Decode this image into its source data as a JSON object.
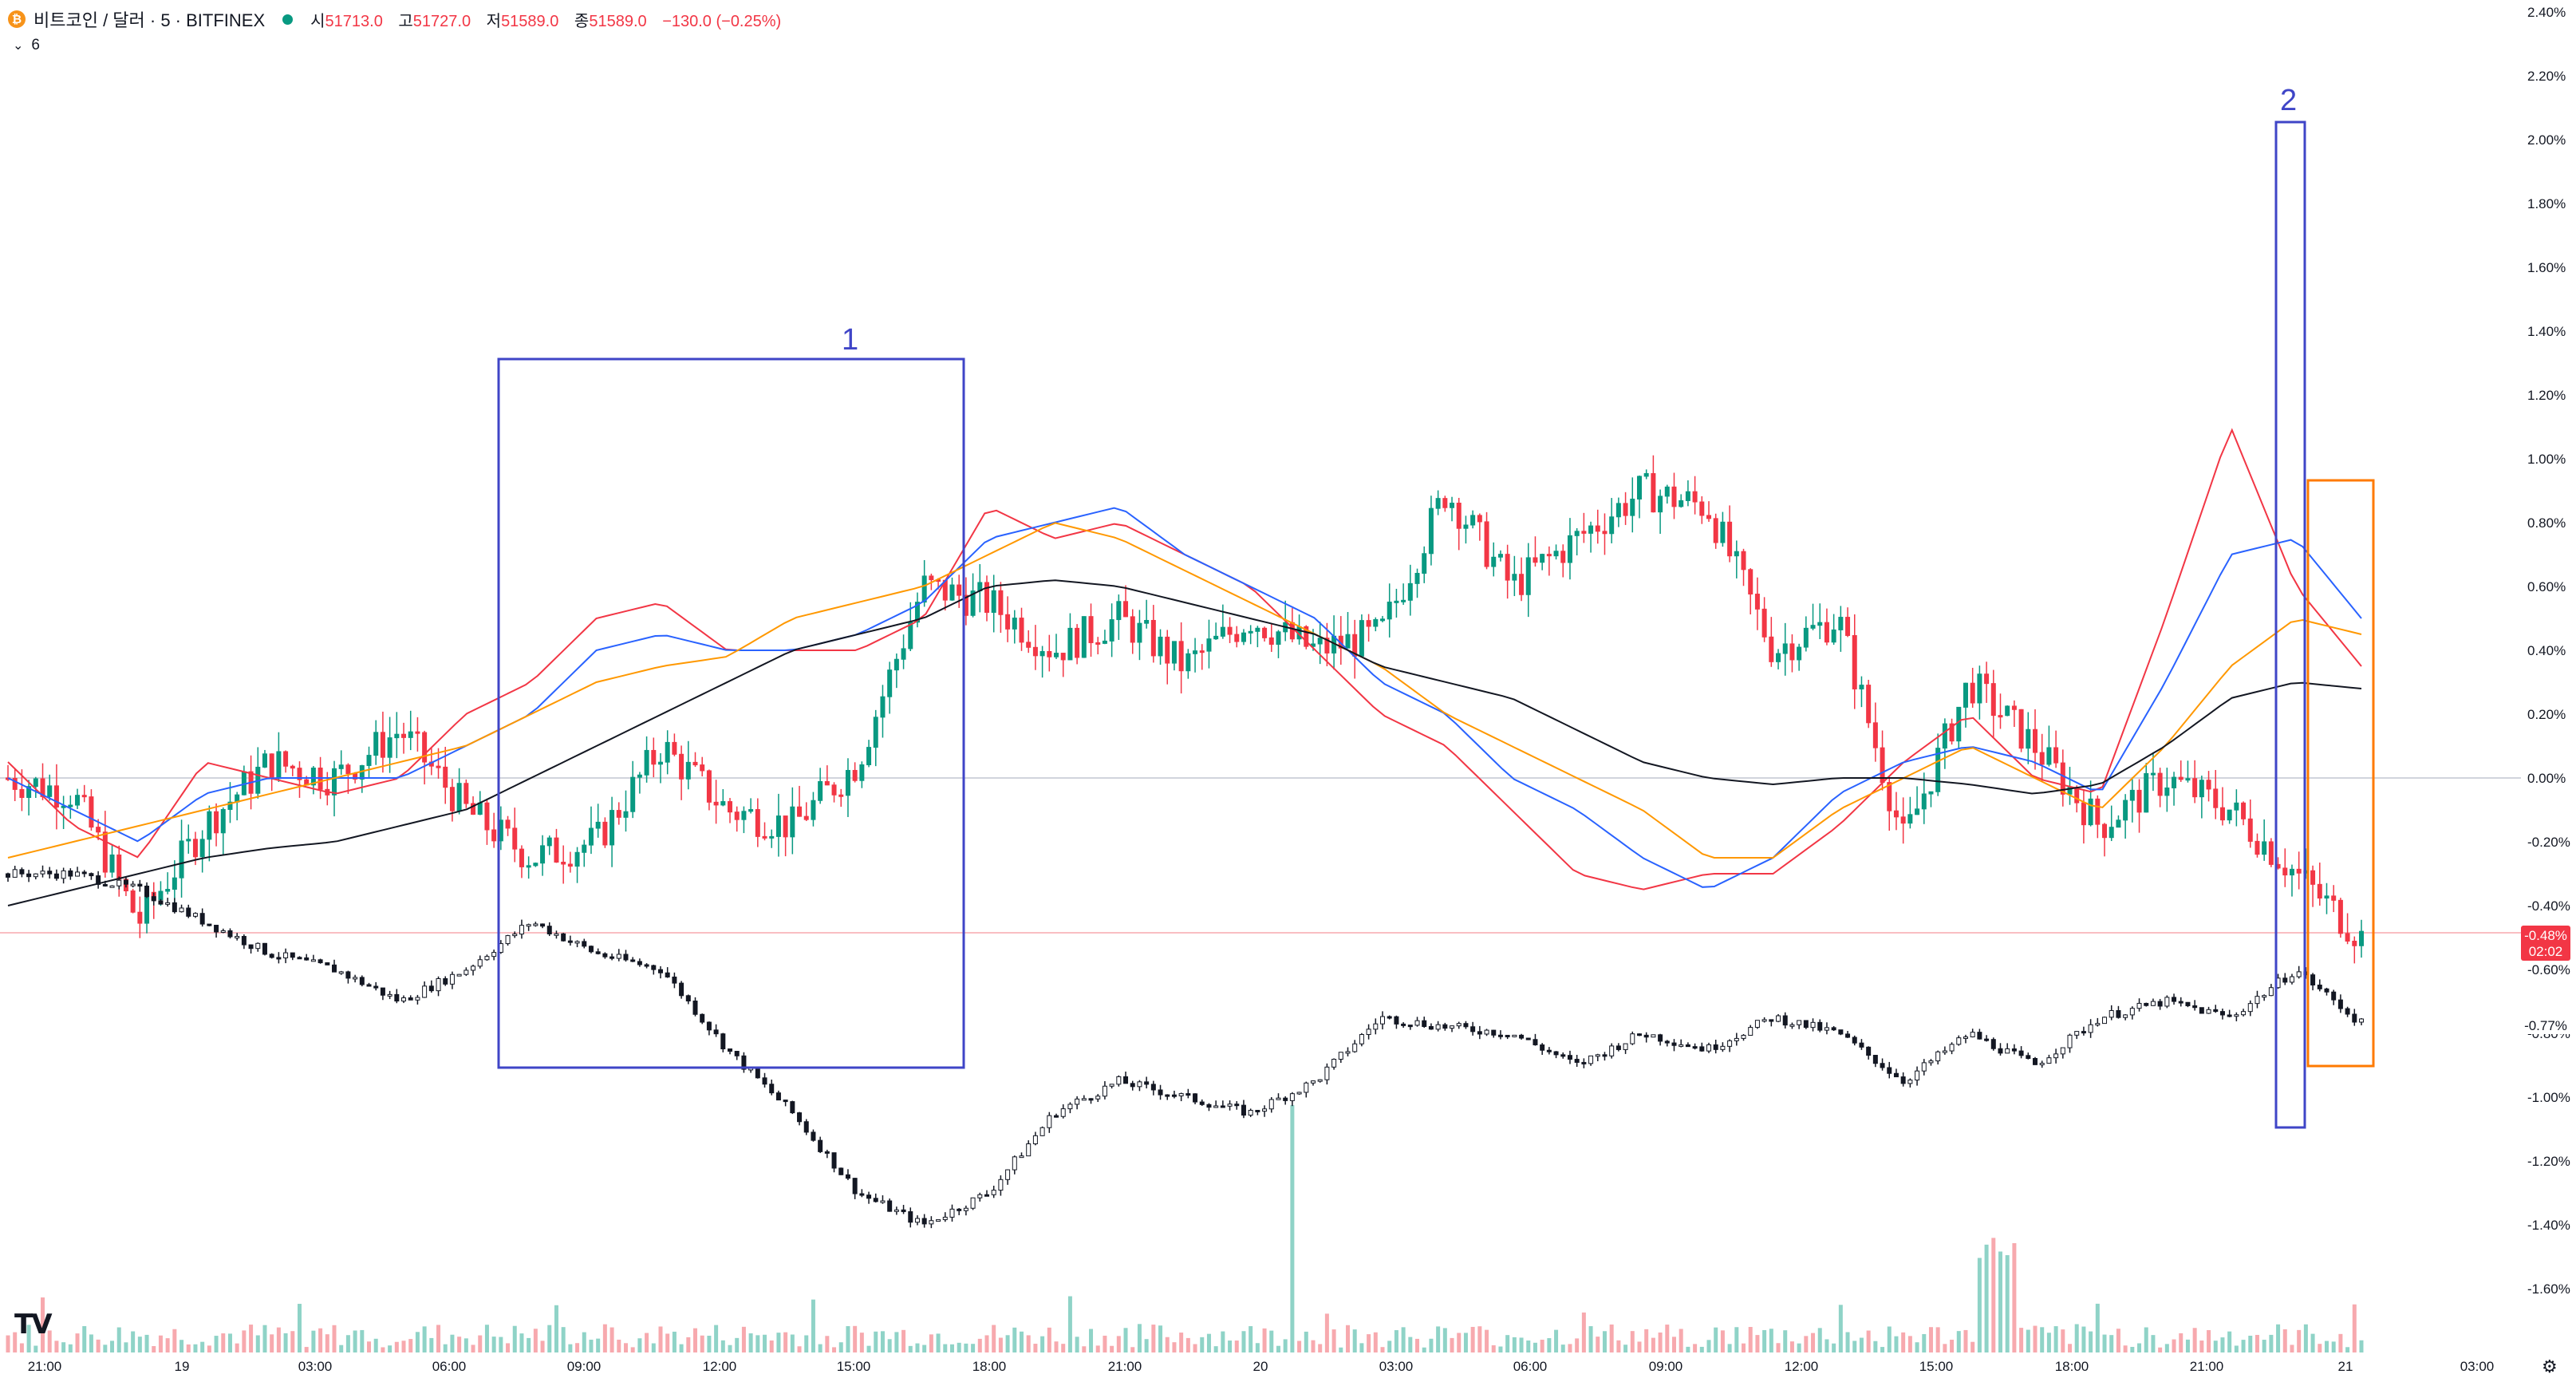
{
  "header": {
    "coin_icon": "bitcoin-icon",
    "symbol": "비트코인 / 달러 · 5 · BITFINEX",
    "status_color": "#089981",
    "open_label": "시",
    "open": "51713.0",
    "high_label": "고",
    "high": "51727.0",
    "low_label": "저",
    "low": "51589.0",
    "close_label": "종",
    "close": "51589.0",
    "change": "−130.0 (−0.25%)",
    "indicator_count": "6"
  },
  "chart_data": {
    "type": "line",
    "title": "",
    "y_unit": "%",
    "ylim": [
      -1.7,
      2.4
    ],
    "y_ticks": [
      "2.40%",
      "2.20%",
      "2.00%",
      "1.80%",
      "1.60%",
      "1.40%",
      "1.20%",
      "1.00%",
      "0.80%",
      "0.60%",
      "0.40%",
      "0.20%",
      "0.00%",
      "-0.20%",
      "-0.40%",
      "-0.60%",
      "-0.80%",
      "-1.00%",
      "-1.20%",
      "-1.40%",
      "-1.60%"
    ],
    "x_ticks": [
      "21:00",
      "19",
      "03:00",
      "06:00",
      "09:00",
      "12:00",
      "15:00",
      "18:00",
      "21:00",
      "20",
      "03:00",
      "06:00",
      "09:00",
      "12:00",
      "15:00",
      "18:00",
      "21:00",
      "21",
      "03:00"
    ],
    "x": [
      0,
      2,
      4,
      6,
      8,
      10,
      12,
      14,
      16,
      18,
      20,
      22,
      24,
      26,
      28,
      30,
      32,
      34,
      36,
      38,
      40,
      42,
      44,
      46,
      48,
      50,
      52,
      54,
      56,
      58,
      60,
      62,
      64,
      66,
      68,
      70,
      72
    ],
    "series": [
      {
        "name": "",
        "kind": "candles",
        "color_up": "#089981",
        "color_down": "#f23645",
        "values": [
          0.0,
          -0.05,
          -0.45,
          -0.15,
          0.05,
          0.0,
          0.15,
          -0.1,
          -0.25,
          -0.2,
          0.1,
          -0.1,
          -0.15,
          0.05,
          0.6,
          0.55,
          0.4,
          0.5,
          0.35,
          0.5,
          0.4,
          0.45,
          0.9,
          0.6,
          0.75,
          0.9,
          0.85,
          0.4,
          0.5,
          -0.2,
          0.3,
          0.1,
          -0.15,
          0.0,
          -0.1,
          -0.3,
          -0.5
        ]
      },
      {
        "name": "",
        "kind": "compare",
        "color": "#131722",
        "values": [
          -0.3,
          -0.3,
          -0.35,
          -0.45,
          -0.55,
          -0.6,
          -0.7,
          -0.6,
          -0.45,
          -0.55,
          -0.6,
          -0.85,
          -1.05,
          -1.3,
          -1.4,
          -1.3,
          -1.05,
          -0.95,
          -1.0,
          -1.05,
          -0.95,
          -0.75,
          -0.78,
          -0.8,
          -0.9,
          -0.8,
          -0.85,
          -0.75,
          -0.8,
          -0.95,
          -0.8,
          -0.9,
          -0.75,
          -0.7,
          -0.75,
          -0.6,
          -0.77
        ]
      },
      {
        "name": "",
        "kind": "ma",
        "color": "#f23645",
        "values": [
          0.05,
          -0.15,
          -0.25,
          0.05,
          0.0,
          -0.05,
          0.0,
          0.2,
          0.3,
          0.5,
          0.55,
          0.4,
          0.4,
          0.4,
          0.5,
          0.85,
          0.75,
          0.8,
          0.7,
          0.6,
          0.4,
          0.2,
          0.1,
          -0.1,
          -0.3,
          -0.35,
          -0.3,
          -0.3,
          -0.15,
          0.05,
          0.2,
          0.0,
          -0.05,
          0.5,
          1.1,
          0.6,
          0.35
        ]
      },
      {
        "name": "",
        "kind": "ma",
        "color": "#2962ff",
        "values": [
          0.0,
          -0.1,
          -0.2,
          -0.05,
          0.0,
          0.0,
          0.0,
          0.1,
          0.2,
          0.4,
          0.45,
          0.4,
          0.4,
          0.45,
          0.55,
          0.75,
          0.8,
          0.85,
          0.7,
          0.6,
          0.5,
          0.3,
          0.2,
          0.0,
          -0.1,
          -0.25,
          -0.35,
          -0.25,
          -0.05,
          0.05,
          0.1,
          0.05,
          -0.05,
          0.3,
          0.7,
          0.75,
          0.5
        ]
      },
      {
        "name": "",
        "kind": "ma",
        "color": "#ff9800",
        "values": [
          -0.25,
          -0.2,
          -0.15,
          -0.1,
          -0.05,
          0.0,
          0.05,
          0.1,
          0.2,
          0.3,
          0.35,
          0.38,
          0.5,
          0.55,
          0.6,
          0.7,
          0.8,
          0.75,
          0.65,
          0.55,
          0.45,
          0.35,
          0.2,
          0.1,
          0.0,
          -0.1,
          -0.25,
          -0.25,
          -0.1,
          0.0,
          0.1,
          0.0,
          -0.1,
          0.1,
          0.35,
          0.5,
          0.45
        ]
      },
      {
        "name": "",
        "kind": "ma",
        "color": "#131722",
        "values": [
          -0.4,
          -0.35,
          -0.3,
          -0.25,
          -0.22,
          -0.2,
          -0.15,
          -0.1,
          0.0,
          0.1,
          0.2,
          0.3,
          0.4,
          0.45,
          0.5,
          0.6,
          0.62,
          0.6,
          0.55,
          0.5,
          0.45,
          0.35,
          0.3,
          0.25,
          0.15,
          0.05,
          0.0,
          -0.02,
          0.0,
          0.0,
          -0.02,
          -0.05,
          -0.02,
          0.1,
          0.25,
          0.3,
          0.28
        ]
      }
    ],
    "last_price_badge": "-0.48%",
    "countdown": "02:02",
    "compare_badge": "-0.77%",
    "annotations": [
      "1",
      "2"
    ],
    "volume": "bars at bottom",
    "grid": false
  },
  "footer": {
    "logo": "TV",
    "settings_icon": "gear-icon"
  }
}
